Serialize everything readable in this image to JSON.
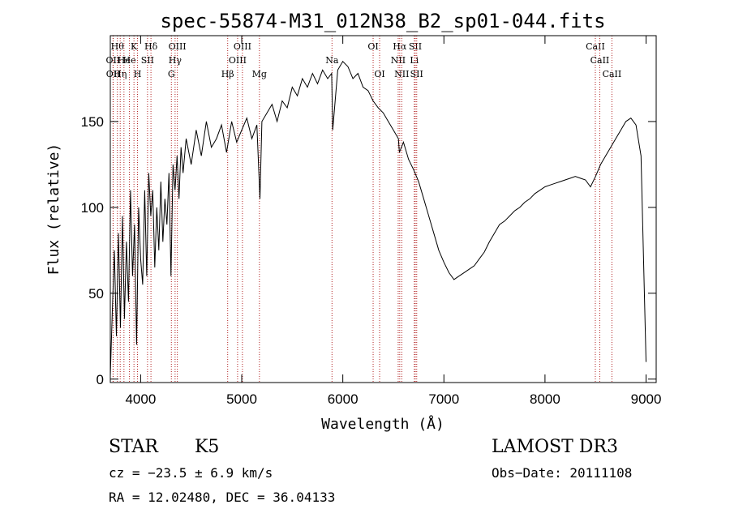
{
  "chart_data": {
    "type": "line",
    "title": "spec-55874-M31_012N38_B2_sp01-044.fits",
    "xlabel": "Wavelength (Å)",
    "ylabel": "Flux (relative)",
    "xlim": [
      3700,
      9100
    ],
    "ylim": [
      -2,
      200
    ],
    "xticks": [
      4000,
      5000,
      6000,
      7000,
      8000,
      9000
    ],
    "yticks": [
      0,
      50,
      100,
      150
    ],
    "series": [
      {
        "name": "flux",
        "x": [
          3700,
          3720,
          3740,
          3760,
          3780,
          3800,
          3820,
          3840,
          3860,
          3880,
          3900,
          3920,
          3940,
          3960,
          3980,
          4000,
          4020,
          4040,
          4060,
          4080,
          4100,
          4120,
          4140,
          4160,
          4180,
          4200,
          4220,
          4240,
          4260,
          4280,
          4300,
          4320,
          4340,
          4360,
          4380,
          4400,
          4420,
          4450,
          4500,
          4550,
          4600,
          4650,
          4700,
          4750,
          4800,
          4850,
          4900,
          4950,
          5000,
          5050,
          5100,
          5150,
          5180,
          5200,
          5250,
          5300,
          5350,
          5400,
          5450,
          5500,
          5550,
          5600,
          5650,
          5700,
          5750,
          5800,
          5850,
          5890,
          5900,
          5950,
          6000,
          6050,
          6100,
          6150,
          6200,
          6250,
          6300,
          6350,
          6400,
          6450,
          6500,
          6550,
          6560,
          6600,
          6650,
          6700,
          6750,
          6800,
          6850,
          6900,
          6950,
          7000,
          7050,
          7100,
          7150,
          7200,
          7250,
          7300,
          7350,
          7400,
          7450,
          7500,
          7550,
          7600,
          7650,
          7700,
          7750,
          7800,
          7850,
          7900,
          7950,
          8000,
          8050,
          8100,
          8150,
          8200,
          8250,
          8300,
          8350,
          8400,
          8450,
          8500,
          8550,
          8600,
          8650,
          8700,
          8750,
          8800,
          8850,
          8900,
          8950,
          9000
        ],
        "y": [
          2,
          40,
          75,
          25,
          85,
          30,
          95,
          35,
          80,
          45,
          110,
          60,
          90,
          20,
          100,
          70,
          55,
          110,
          60,
          120,
          95,
          110,
          65,
          100,
          75,
          115,
          80,
          105,
          90,
          120,
          60,
          125,
          110,
          130,
          105,
          135,
          120,
          140,
          125,
          145,
          130,
          150,
          135,
          140,
          148,
          132,
          150,
          138,
          145,
          152,
          140,
          148,
          105,
          150,
          155,
          160,
          150,
          162,
          158,
          170,
          165,
          175,
          170,
          178,
          172,
          180,
          175,
          178,
          145,
          180,
          185,
          182,
          175,
          178,
          170,
          168,
          162,
          158,
          155,
          150,
          145,
          140,
          132,
          138,
          128,
          122,
          115,
          105,
          95,
          85,
          75,
          68,
          62,
          58,
          60,
          62,
          64,
          66,
          70,
          74,
          80,
          85,
          90,
          92,
          95,
          98,
          100,
          103,
          105,
          108,
          110,
          112,
          113,
          114,
          115,
          116,
          117,
          118,
          117,
          116,
          112,
          118,
          125,
          130,
          135,
          140,
          145,
          150,
          152,
          148,
          130,
          10
        ]
      }
    ],
    "line_markers": [
      {
        "wl": 3727,
        "label": "OII",
        "row": 2
      },
      {
        "wl": 3729,
        "label": "OII",
        "row": 3
      },
      {
        "wl": 3770,
        "label": "Hθ",
        "row": 1
      },
      {
        "wl": 3798,
        "label": "Hη",
        "row": 3
      },
      {
        "wl": 3835,
        "label": "He",
        "row": 2
      },
      {
        "wl": 3889,
        "label": "He",
        "row": 2
      },
      {
        "wl": 3934,
        "label": "K",
        "row": 1
      },
      {
        "wl": 3969,
        "label": "H",
        "row": 3
      },
      {
        "wl": 4068,
        "label": "SII",
        "row": 2
      },
      {
        "wl": 4102,
        "label": "Hδ",
        "row": 1
      },
      {
        "wl": 4304,
        "label": "G",
        "row": 3
      },
      {
        "wl": 4341,
        "label": "Hγ",
        "row": 2
      },
      {
        "wl": 4363,
        "label": "OIII",
        "row": 1
      },
      {
        "wl": 4861,
        "label": "Hβ",
        "row": 3
      },
      {
        "wl": 4959,
        "label": "OIII",
        "row": 2
      },
      {
        "wl": 5007,
        "label": "OIII",
        "row": 1
      },
      {
        "wl": 5175,
        "label": "Mg",
        "row": 3
      },
      {
        "wl": 5893,
        "label": "Na",
        "row": 2
      },
      {
        "wl": 6300,
        "label": "OI",
        "row": 1
      },
      {
        "wl": 6364,
        "label": "OI",
        "row": 3
      },
      {
        "wl": 6548,
        "label": "NII",
        "row": 2
      },
      {
        "wl": 6563,
        "label": "Hα",
        "row": 1
      },
      {
        "wl": 6583,
        "label": "NII",
        "row": 3
      },
      {
        "wl": 6707,
        "label": "Li",
        "row": 2
      },
      {
        "wl": 6717,
        "label": "SII",
        "row": 1
      },
      {
        "wl": 6731,
        "label": "SII",
        "row": 3
      },
      {
        "wl": 8498,
        "label": "CaII",
        "row": 1
      },
      {
        "wl": 8542,
        "label": "CaII",
        "row": 2
      },
      {
        "wl": 8662,
        "label": "CaII",
        "row": 3
      }
    ]
  },
  "info": {
    "class": "STAR",
    "subclass": "K5",
    "survey": "LAMOST DR3",
    "redshift_line": "cz = −23.5 ± 6.9 km/s",
    "obs_date": "Obs−Date: 20111108",
    "coords": "RA =  12.02480, DEC =  36.04133"
  }
}
